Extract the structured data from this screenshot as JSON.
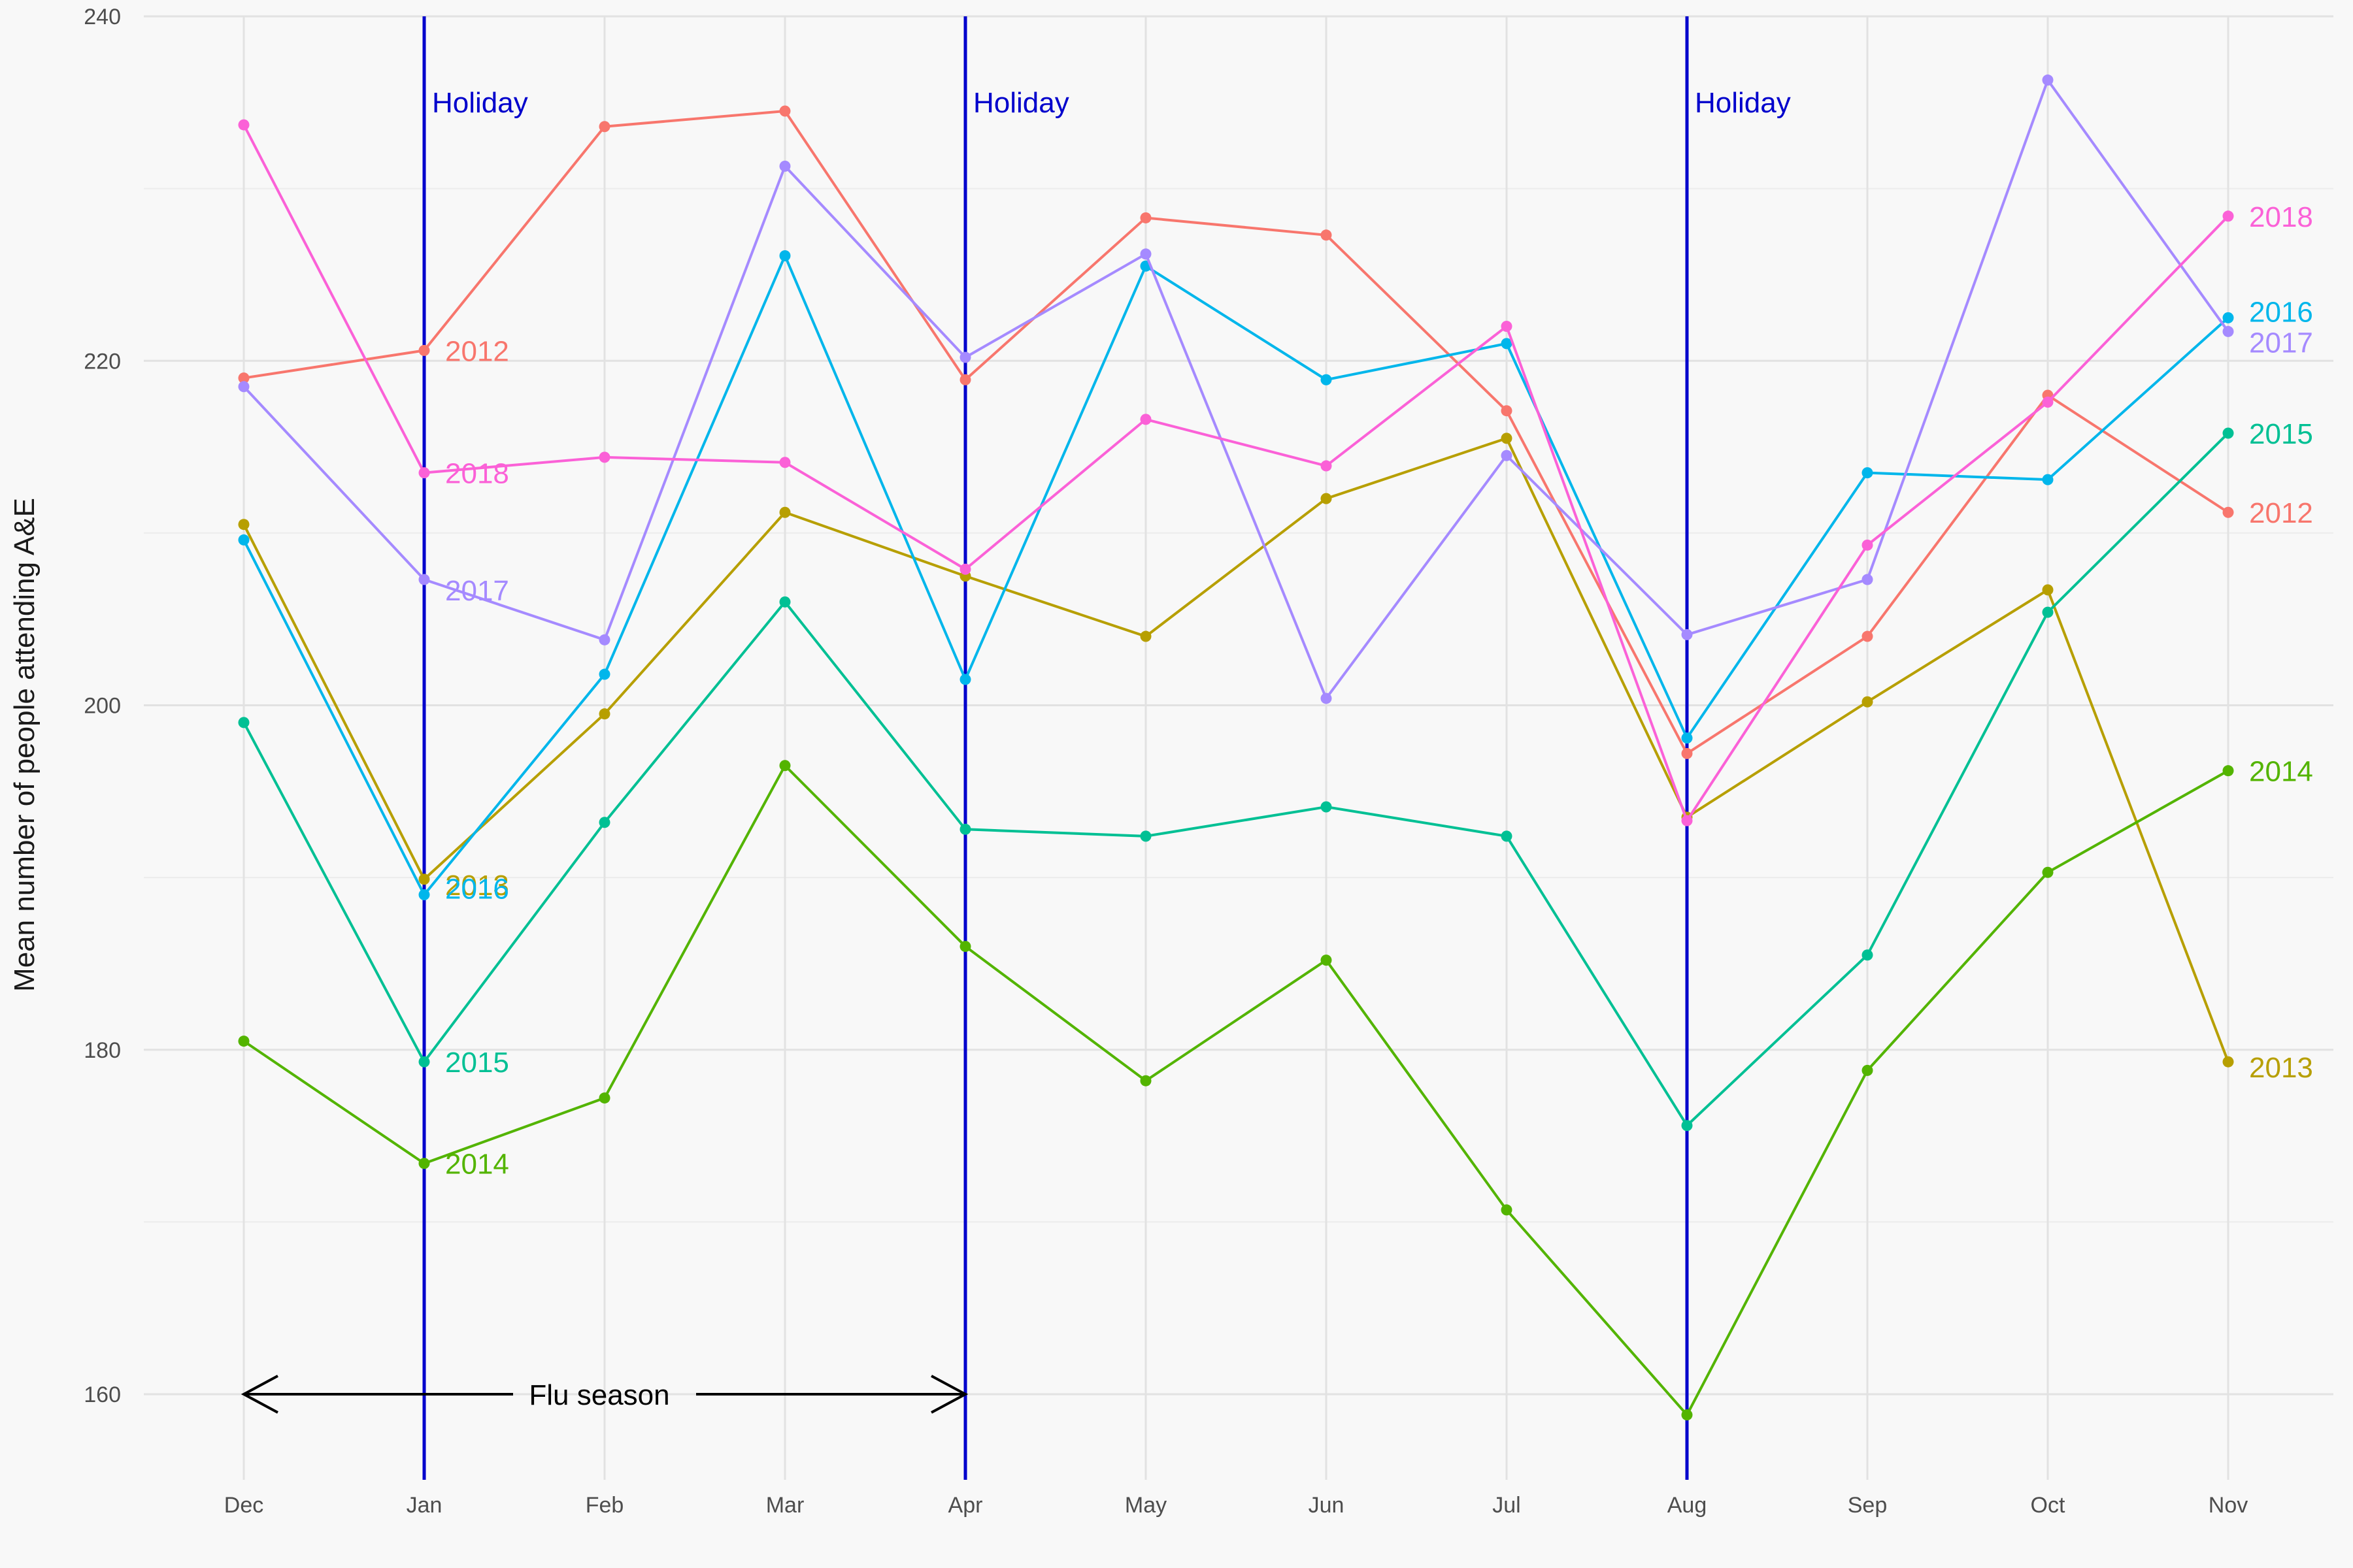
{
  "chart_data": {
    "type": "line",
    "title": "",
    "xlabel": "",
    "ylabel": "Mean number of people attending A&E",
    "categories": [
      "Dec",
      "Jan",
      "Feb",
      "Mar",
      "Apr",
      "May",
      "Jun",
      "Jul",
      "Aug",
      "Sep",
      "Oct",
      "Nov"
    ],
    "ylim": [
      155,
      240
    ],
    "yticks": [
      160,
      180,
      200,
      220,
      240
    ],
    "grid": true,
    "legend": "direct labels at series ends",
    "series": [
      {
        "name": "2012",
        "color": "#f8766d",
        "values": [
          219.0,
          220.6,
          233.6,
          234.5,
          218.9,
          228.3,
          227.3,
          217.1,
          197.2,
          204.0,
          218.0,
          211.2
        ],
        "label_positions": [
          1,
          11
        ]
      },
      {
        "name": "2013",
        "color": "#b79f00",
        "values": [
          210.5,
          189.9,
          199.5,
          211.2,
          207.5,
          204.0,
          212.0,
          215.5,
          193.5,
          200.2,
          206.7,
          179.3
        ],
        "label_positions": [
          1,
          11
        ]
      },
      {
        "name": "2014",
        "color": "#53b400",
        "values": [
          180.5,
          173.4,
          177.2,
          196.5,
          186.0,
          178.2,
          185.2,
          170.7,
          158.8,
          178.8,
          190.3,
          196.2
        ],
        "label_positions": [
          1,
          11
        ]
      },
      {
        "name": "2015",
        "color": "#00c094",
        "values": [
          199.0,
          179.3,
          193.2,
          206.0,
          192.8,
          192.4,
          194.1,
          192.4,
          175.6,
          185.5,
          205.4,
          215.8
        ],
        "label_positions": [
          1,
          11
        ]
      },
      {
        "name": "2016",
        "color": "#00b6eb",
        "values": [
          209.6,
          189.0,
          201.8,
          226.1,
          201.5,
          225.5,
          218.9,
          221.0,
          198.1,
          213.5,
          213.1,
          222.5
        ],
        "label_positions": [
          1,
          11
        ]
      },
      {
        "name": "2017",
        "color": "#a58aff",
        "values": [
          218.5,
          207.3,
          203.8,
          231.3,
          220.2,
          226.2,
          200.4,
          214.5,
          204.1,
          207.3,
          236.3,
          221.7
        ],
        "label_positions": [
          1,
          11
        ]
      },
      {
        "name": "2018",
        "color": "#fb61d7",
        "values": [
          233.7,
          213.5,
          214.4,
          214.1,
          207.9,
          216.6,
          213.9,
          222.0,
          193.3,
          209.3,
          217.6,
          228.4
        ],
        "label_positions": [
          1,
          11
        ]
      }
    ],
    "annotations": {
      "holidays": [
        {
          "label": "Holiday",
          "at": "Jan"
        },
        {
          "label": "Holiday",
          "at": "Apr"
        },
        {
          "label": "Holiday",
          "at": "Aug"
        }
      ],
      "holiday_color": "#0000cc",
      "flu_season": {
        "label": "Flu season",
        "from": "Dec",
        "to": "Apr",
        "y": 160
      }
    }
  }
}
